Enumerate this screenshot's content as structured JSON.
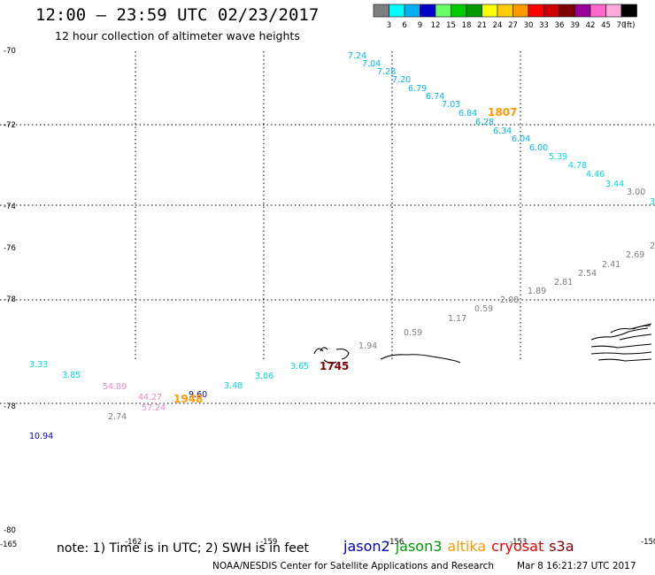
{
  "header": {
    "title": "12:00 – 23:59 UTC 02/23/2017",
    "subtitle": "12 hour collection of altimeter wave heights"
  },
  "legend": {
    "unit": "(ft)",
    "colors": [
      "#7f7f7f",
      "#00ffff",
      "#00b0f0",
      "#0000cd",
      "#66ff66",
      "#00cc00",
      "#009900",
      "#ffff00",
      "#ffcc00",
      "#ff9900",
      "#ff0000",
      "#cc0000",
      "#800000",
      "#990099",
      "#ff66cc",
      "#ffaadd",
      "#000000"
    ],
    "labels": [
      "3",
      "6",
      "9",
      "12",
      "15",
      "18",
      "21",
      "24",
      "27",
      "30",
      "33",
      "36",
      "39",
      "42",
      "45",
      "70"
    ]
  },
  "footer": {
    "note": "note: 1) Time is in UTC; 2) SWH is in feet",
    "satellites": [
      {
        "name": "jason2",
        "color": "#0000cc"
      },
      {
        "name": "jason3",
        "color": "#009900"
      },
      {
        "name": "altika",
        "color": "#ff9900"
      },
      {
        "name": "cryosat",
        "color": "#ee0000"
      },
      {
        "name": "s3a",
        "color": "#800000"
      }
    ],
    "credit": "NOAA/NESDIS Center for Satellite Applications and Research",
    "timestamp": "Mar  8 16:21:27 UTC 2017"
  },
  "chart_data": {
    "type": "map",
    "grid": true,
    "lat_tick_labels": [
      "-70",
      "-72",
      "-74",
      "-76",
      "-78",
      "-78",
      "-80"
    ],
    "lon_tick_labels": [
      "-165",
      "-162",
      "-159",
      "-156",
      "-153",
      "-150"
    ],
    "time_labels": [
      {
        "text": "1807",
        "color": "#ff9900"
      },
      {
        "text": "1745",
        "color": "#800000"
      },
      {
        "text": "1948",
        "color": "#ff9900"
      }
    ],
    "tracks": [
      {
        "name": "cyan-upper",
        "points": [
          {
            "v": "7.24",
            "c": "#00bbee"
          },
          {
            "v": "7.04",
            "c": "#00bbee"
          },
          {
            "v": "7.28",
            "c": "#00bbee"
          },
          {
            "v": "7.20",
            "c": "#00bbee"
          },
          {
            "v": "6.79",
            "c": "#00bbee"
          },
          {
            "v": "6.74",
            "c": "#00bbee"
          },
          {
            "v": "7.03",
            "c": "#00bbee"
          },
          {
            "v": "6.84",
            "c": "#00bbee"
          },
          {
            "v": "6.28",
            "c": "#00bbee"
          },
          {
            "v": "6.34",
            "c": "#00bbee"
          },
          {
            "v": "6.04",
            "c": "#00bbee"
          },
          {
            "v": "6.00",
            "c": "#00bbee"
          },
          {
            "v": "5.39",
            "c": "#00dddd"
          },
          {
            "v": "4.78",
            "c": "#00dddd"
          },
          {
            "v": "4.46",
            "c": "#00dddd"
          },
          {
            "v": "3.44",
            "c": "#00dddd"
          },
          {
            "v": "3.00",
            "c": "#808080"
          },
          {
            "v": "3",
            "c": "#00dddd"
          }
        ]
      },
      {
        "name": "gray-middle",
        "points": [
          {
            "v": "2",
            "c": "#808080"
          },
          {
            "v": "2.69",
            "c": "#808080"
          },
          {
            "v": "2.41",
            "c": "#808080"
          },
          {
            "v": "2.54",
            "c": "#808080"
          },
          {
            "v": "2.81",
            "c": "#808080"
          },
          {
            "v": "1.89",
            "c": "#808080"
          },
          {
            "v": "2.08",
            "c": "#808080"
          },
          {
            "v": "0.59",
            "c": "#808080"
          },
          {
            "v": "1.17",
            "c": "#808080"
          },
          {
            "v": "0.59",
            "c": "#808080"
          },
          {
            "v": "1.94",
            "c": "#808080"
          }
        ]
      },
      {
        "name": "lower",
        "points": [
          {
            "v": "3.33",
            "c": "#00dddd"
          },
          {
            "v": "3.85",
            "c": "#00dddd"
          },
          {
            "v": "54.89",
            "c": "#ee88cc"
          },
          {
            "v": "44.27",
            "c": "#ee88cc"
          },
          {
            "v": "57.24",
            "c": "#ee88cc"
          },
          {
            "v": "2.74",
            "c": "#808080"
          },
          {
            "v": "9.60",
            "c": "#0000cc"
          },
          {
            "v": "3.48",
            "c": "#00dddd"
          },
          {
            "v": "3.06",
            "c": "#00dddd"
          },
          {
            "v": "3.65",
            "c": "#00dddd"
          },
          {
            "v": "10.94",
            "c": "#0000cc"
          }
        ]
      }
    ]
  }
}
